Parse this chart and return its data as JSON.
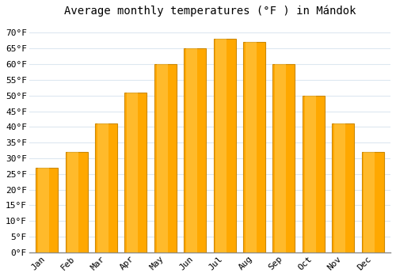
{
  "title": "Average monthly temperatures (°F ) in Mándok",
  "months": [
    "Jan",
    "Feb",
    "Mar",
    "Apr",
    "May",
    "Jun",
    "Jul",
    "Aug",
    "Sep",
    "Oct",
    "Nov",
    "Dec"
  ],
  "values": [
    27,
    32,
    41,
    51,
    60,
    65,
    68,
    67,
    60,
    50,
    41,
    32
  ],
  "bar_color": "#FFA800",
  "bar_edge_color": "#CC8800",
  "background_color": "#ffffff",
  "grid_color": "#dde8f0",
  "yticks": [
    0,
    5,
    10,
    15,
    20,
    25,
    30,
    35,
    40,
    45,
    50,
    55,
    60,
    65,
    70
  ],
  "ylim": [
    0,
    73
  ],
  "title_fontsize": 10,
  "tick_fontsize": 8,
  "font_family": "monospace",
  "bar_width": 0.75
}
